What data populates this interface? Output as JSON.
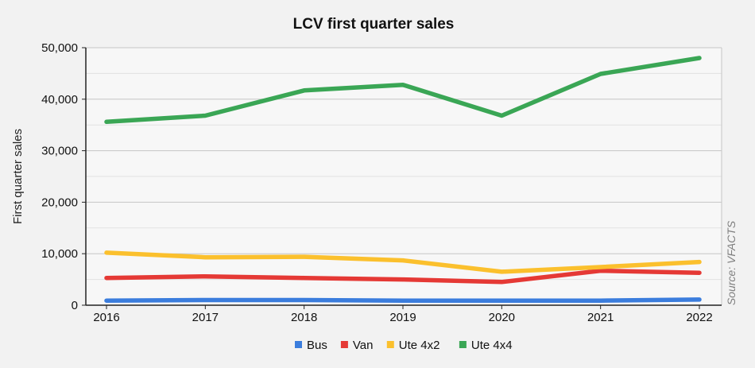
{
  "chart_data": {
    "type": "line",
    "title": "LCV first quarter sales",
    "xlabel": "",
    "ylabel": "First quarter sales",
    "source": "Source: VFACTS",
    "x": [
      "2016",
      "2017",
      "2018",
      "2019",
      "2020",
      "2021",
      "2022"
    ],
    "ylim": [
      0,
      50000
    ],
    "yticks": [
      0,
      10000,
      20000,
      30000,
      40000,
      50000
    ],
    "ytick_labels": [
      "0",
      "10,000",
      "20,000",
      "30,000",
      "40,000",
      "50,000"
    ],
    "grid": true,
    "legend_position": "bottom",
    "series": [
      {
        "name": "Bus",
        "color": "#3b7ddd",
        "values": [
          900,
          1000,
          1000,
          900,
          900,
          900,
          1100
        ]
      },
      {
        "name": "Van",
        "color": "#e53935",
        "values": [
          5300,
          5600,
          5300,
          5000,
          4500,
          6700,
          6300
        ]
      },
      {
        "name": "Ute 4x2",
        "color": "#fbc02d",
        "values": [
          10200,
          9300,
          9400,
          8700,
          6500,
          7400,
          8400
        ]
      },
      {
        "name": "Ute 4x4",
        "color": "#3aa655",
        "values": [
          35600,
          36800,
          41700,
          42800,
          36800,
          44900,
          48000
        ]
      }
    ]
  }
}
